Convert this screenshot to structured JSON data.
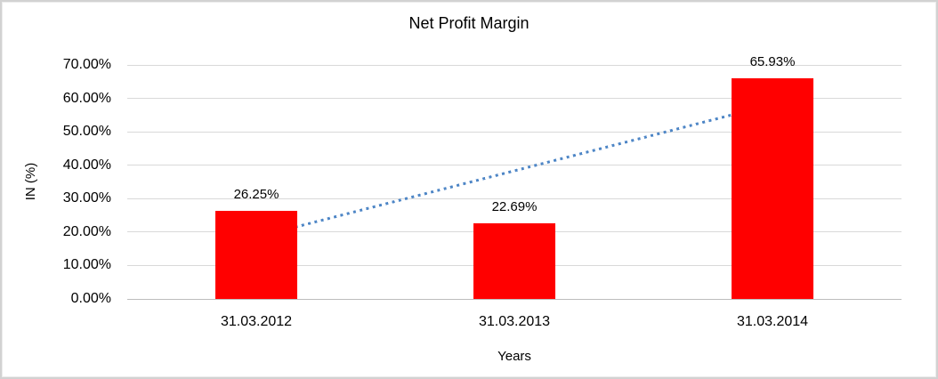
{
  "chart_data": {
    "type": "bar",
    "title": "Net Profit Margin",
    "xlabel": "Years",
    "ylabel": "IN (%)",
    "categories": [
      "31.03.2012",
      "31.03.2013",
      "31.03.2014"
    ],
    "values": [
      26.25,
      22.69,
      65.93
    ],
    "data_labels": [
      "26.25%",
      "22.69%",
      "65.93%"
    ],
    "series_name": "Net Profit Margin",
    "ylim": [
      0,
      70
    ],
    "y_tick_step": 10,
    "y_tick_values": [
      0,
      10,
      20,
      30,
      40,
      50,
      60,
      70
    ],
    "y_tick_labels": [
      "0.00%",
      "10.00%",
      "20.00%",
      "30.00%",
      "40.00%",
      "50.00%",
      "60.00%",
      "70.00%"
    ],
    "grid": true,
    "legend_position": "none",
    "bar_color": "#ff0000",
    "gridline_color": "#d9d9d9",
    "axis_line_color": "#bdbdbd",
    "text_color": "#000000",
    "trendline": {
      "type": "linear",
      "style": "dotted",
      "color": "#4e86c6",
      "start_value": 18.45,
      "end_value": 58.13
    }
  }
}
